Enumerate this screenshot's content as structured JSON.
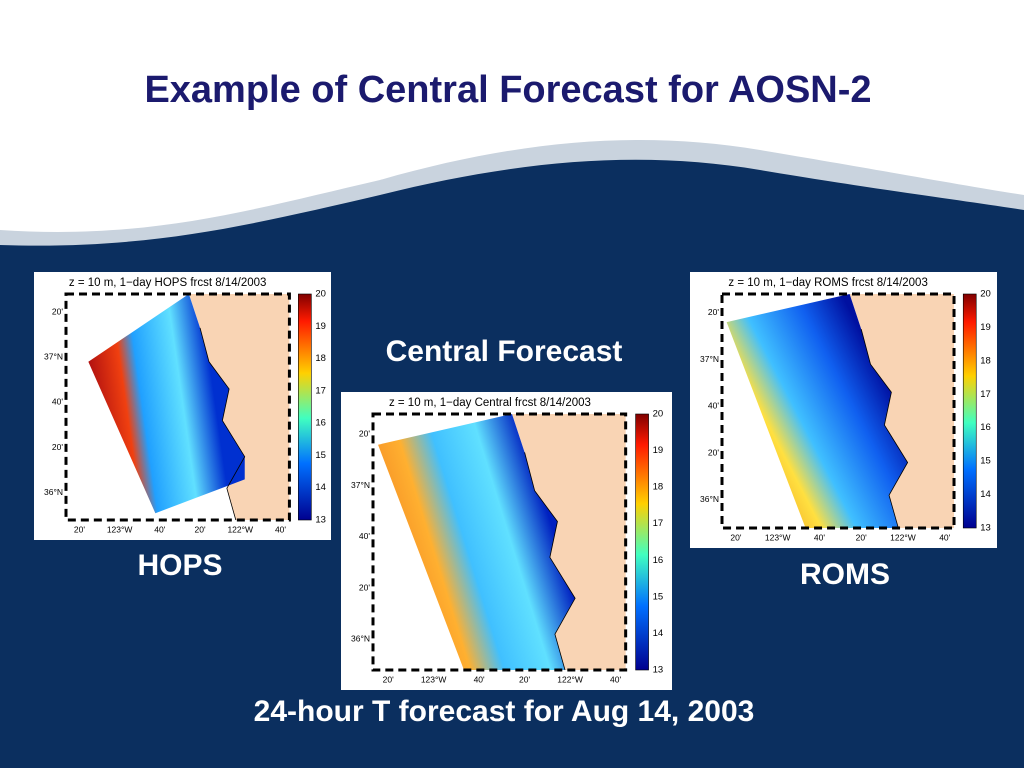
{
  "title": "Example of Central Forecast for AOSN-2",
  "center_label": "Central Forecast",
  "footer": "24-hour T forecast for Aug 14, 2003",
  "panels": [
    {
      "title": "z = 10 m, 1−day HOPS frcst 8/14/2003",
      "caption": "HOPS",
      "lat_labels": [
        "20'",
        "37°N",
        "40'",
        "20'",
        "36°N"
      ],
      "lon_labels": [
        "20'",
        "123°W",
        "40'",
        "20'",
        "122°W",
        "40'"
      ],
      "colorbar": [
        20,
        19,
        18,
        17,
        16,
        15,
        14,
        13
      ]
    },
    {
      "title": "z = 10 m, 1−day Central frcst 8/14/2003",
      "caption": null,
      "lat_labels": [
        "20'",
        "37°N",
        "40'",
        "20'",
        "36°N"
      ],
      "lon_labels": [
        "20'",
        "123°W",
        "40'",
        "20'",
        "122°W",
        "40'"
      ],
      "colorbar": [
        20,
        19,
        18,
        17,
        16,
        15,
        14,
        13
      ]
    },
    {
      "title": "z = 10 m, 1−day ROMS frcst 8/14/2003",
      "caption": "ROMS",
      "lat_labels": [
        "20'",
        "37°N",
        "40'",
        "20'",
        "36°N"
      ],
      "lon_labels": [
        "20'",
        "123°W",
        "40'",
        "20'",
        "122°W",
        "40'"
      ],
      "colorbar": [
        20,
        19,
        18,
        17,
        16,
        15,
        14,
        13
      ]
    }
  ]
}
